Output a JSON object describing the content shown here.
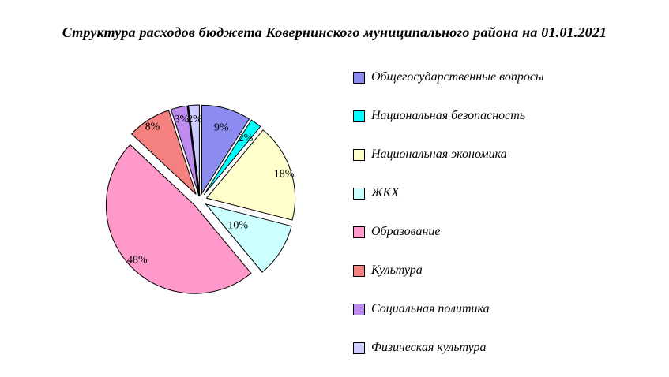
{
  "title": "Структура расходов бюджета Ковернинского муниципального района на 01.01.2021",
  "chart_data": {
    "type": "pie",
    "title": "Структура расходов бюджета Ковернинского муниципального района на 01.01.2021",
    "legend_position": "right",
    "direction": "clockwise",
    "start_angle_deg": 0,
    "exploded": true,
    "background_color": "#ffffff",
    "zero_width_slice_angle_deg": 352.8,
    "slices": [
      {
        "label": "Общегосударственные вопросы",
        "value": 9,
        "pct_label": "9%",
        "color": "#8C8CF0",
        "label_r": 0.79
      },
      {
        "label": "Национальная безопасность",
        "value": 2,
        "pct_label": "2%",
        "color": "#00FFFF",
        "label_r": 0.8
      },
      {
        "label": "Национальная экономика",
        "value": 18,
        "pct_label": "18%",
        "color": "#FFFFCC",
        "label_r": 0.92
      },
      {
        "label": "ЖКХ",
        "value": 10,
        "pct_label": "10%",
        "color": "#CCFFFF",
        "label_r": 0.43
      },
      {
        "label": "Образование",
        "value": 48,
        "pct_label": "48%",
        "color": "#FF99CC",
        "label_r": 0.89
      },
      {
        "label": "Культура",
        "value": 8,
        "pct_label": "8%",
        "color": "#F58080",
        "label_r": 0.92
      },
      {
        "label": "Социальная политика",
        "value": 3,
        "pct_label": "3%",
        "color": "#BE8CF0",
        "label_r": 0.87
      },
      {
        "label": "Физическая культура",
        "value": 2,
        "pct_label": "2%",
        "color": "#CCCCFF",
        "label_r": 0.85
      }
    ]
  }
}
